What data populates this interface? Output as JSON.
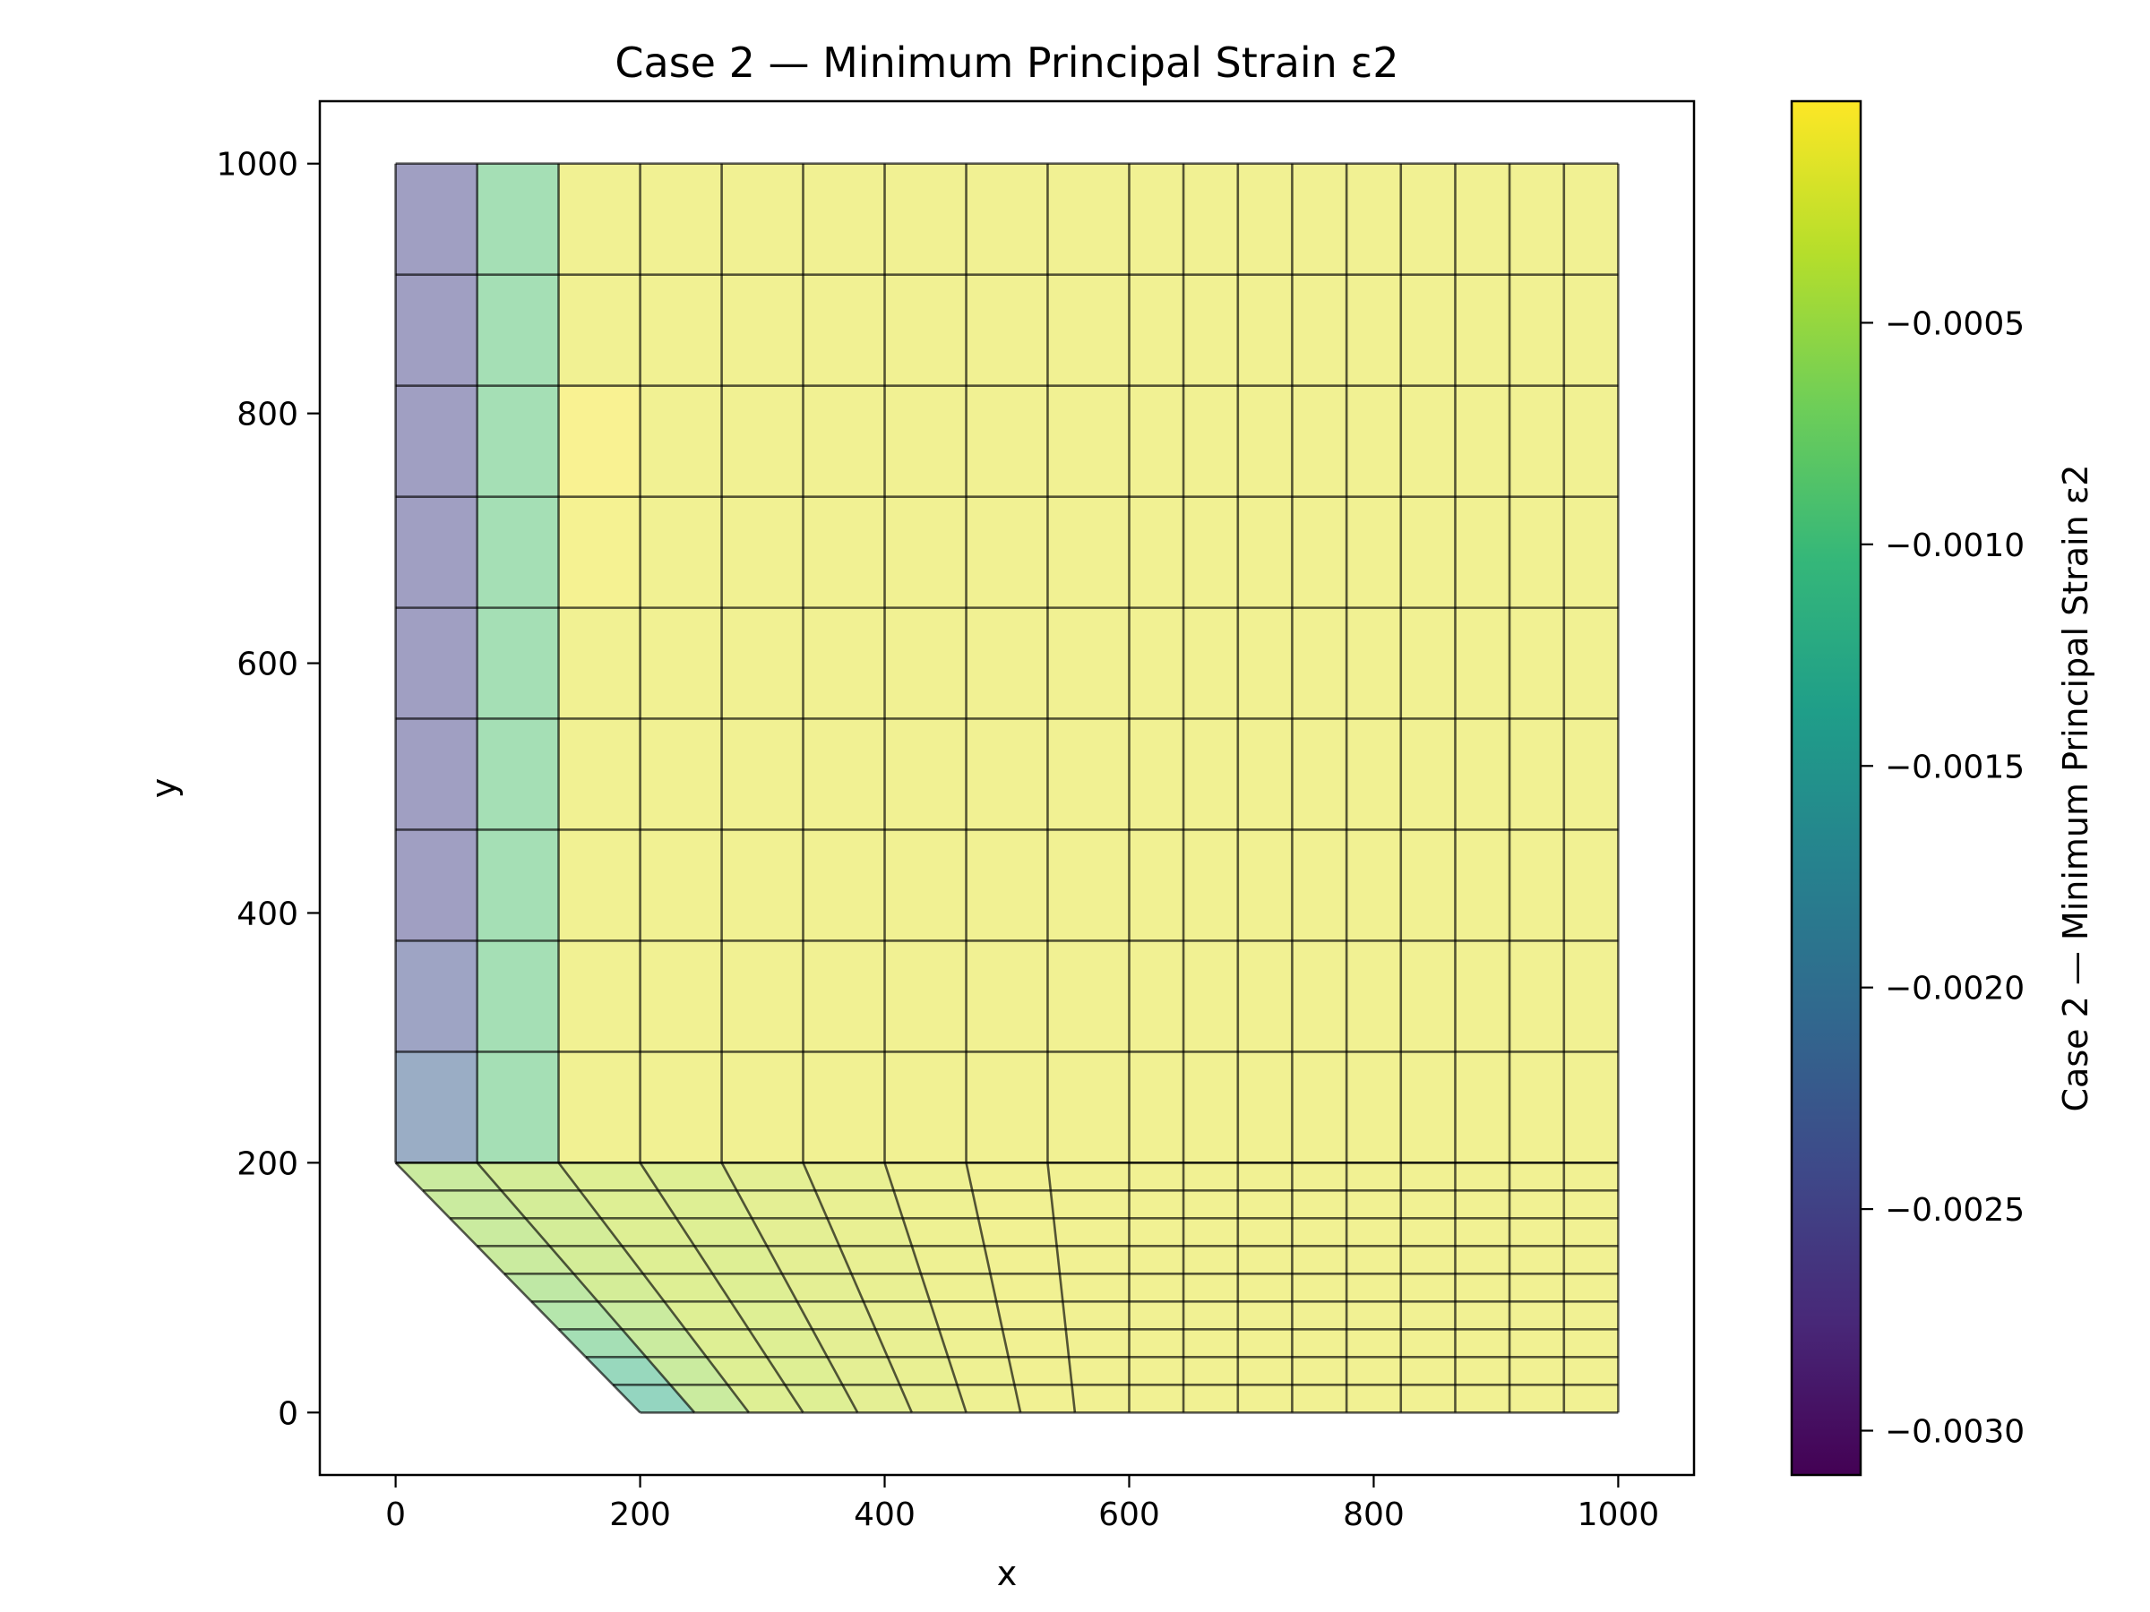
{
  "chart_data": {
    "type": "heatmap",
    "title": "Case  2 — Minimum Principal Strain ε2",
    "xlabel": "x",
    "ylabel": "y",
    "xlim": [
      -62,
      1062
    ],
    "ylim": [
      -50,
      1050
    ],
    "xticks": [
      0,
      200,
      400,
      600,
      800,
      1000
    ],
    "yticks": [
      0,
      200,
      400,
      600,
      800,
      1000
    ],
    "xtick_labels": [
      "0",
      "200",
      "400",
      "600",
      "800",
      "1000"
    ],
    "ytick_labels": [
      "0",
      "200",
      "400",
      "600",
      "800",
      "1000"
    ],
    "grid": false,
    "colormap": "viridis",
    "colorbar": {
      "label": "Case  2 — Minimum Principal Strain ε2",
      "range": [
        -0.0031,
        0.0
      ],
      "ticks": [
        -0.0005,
        -0.001,
        -0.0015,
        -0.002,
        -0.0025,
        -0.003
      ],
      "tick_labels": [
        "−0.0005",
        "−0.0010",
        "−0.0015",
        "−0.0020",
        "−0.0025",
        "−0.0030"
      ],
      "colors": [
        "#440154",
        "#482878",
        "#3e4989",
        "#31688e",
        "#26828e",
        "#1f9e89",
        "#35b779",
        "#6ece58",
        "#b5de2b",
        "#fde725"
      ]
    },
    "mesh": {
      "upper_x_nodes": [
        0,
        66.7,
        133.3,
        200,
        266.7,
        333.3,
        400,
        466.7,
        533.3,
        600,
        644.4,
        688.9,
        733.3,
        777.8,
        822.2,
        866.7,
        911.1,
        955.6,
        1000
      ],
      "upper_y_nodes": [
        200,
        288.9,
        377.8,
        466.7,
        555.6,
        644.4,
        733.3,
        822.2,
        911.1,
        1000
      ],
      "upper_values": [
        [
          -0.0022,
          -0.0009,
          -0.00012,
          -0.00012,
          -0.00012,
          -0.00012,
          -0.00012,
          -0.00012,
          -0.00012,
          -0.00012,
          -0.00012,
          -0.00012,
          -0.00012,
          -0.00012,
          -0.00012,
          -0.00012,
          -0.00012,
          -0.00012
        ],
        [
          -0.0024,
          -0.0009,
          -0.00012,
          -0.00012,
          -0.00012,
          -0.00012,
          -0.00012,
          -0.00012,
          -0.00012,
          -0.00012,
          -0.00012,
          -0.00012,
          -0.00012,
          -0.00012,
          -0.00012,
          -0.00012,
          -0.00012,
          -0.00012
        ],
        [
          -0.0025,
          -0.0009,
          -0.00012,
          -0.00012,
          -0.00012,
          -0.00012,
          -0.00012,
          -0.00012,
          -0.00012,
          -0.00012,
          -0.00012,
          -0.00012,
          -0.00012,
          -0.00012,
          -0.00012,
          -0.00012,
          -0.00012,
          -0.00012
        ],
        [
          -0.0025,
          -0.0009,
          -0.00012,
          -0.00012,
          -0.00012,
          -0.00012,
          -0.00012,
          -0.00012,
          -0.00012,
          -0.00012,
          -0.00012,
          -0.00012,
          -0.00012,
          -0.00012,
          -0.00012,
          -0.00012,
          -0.00012,
          -0.00012
        ],
        [
          -0.0025,
          -0.0009,
          -0.00012,
          -0.00012,
          -0.00012,
          -0.00012,
          -0.00012,
          -0.00012,
          -0.00012,
          -0.00012,
          -0.00012,
          -0.00012,
          -0.00012,
          -0.00012,
          -0.00012,
          -0.00012,
          -0.00012,
          -0.00012
        ],
        [
          -0.0025,
          -0.0009,
          -8e-05,
          -0.00012,
          -0.00012,
          -0.00012,
          -0.00012,
          -0.00012,
          -0.00012,
          -0.00012,
          -0.00012,
          -0.00012,
          -0.00012,
          -0.00012,
          -0.00012,
          -0.00012,
          -0.00012,
          -0.00012
        ],
        [
          -0.0025,
          -0.0009,
          -5e-05,
          -0.00012,
          -0.00012,
          -0.00012,
          -0.00012,
          -0.00012,
          -0.00012,
          -0.00012,
          -0.00012,
          -0.00012,
          -0.00012,
          -0.00012,
          -0.00012,
          -0.00012,
          -0.00012,
          -0.00012
        ],
        [
          -0.0025,
          -0.0009,
          -0.00012,
          -0.00012,
          -0.00012,
          -0.00012,
          -0.00012,
          -0.00012,
          -0.00012,
          -0.00012,
          -0.00012,
          -0.00012,
          -0.00012,
          -0.00012,
          -0.00012,
          -0.00012,
          -0.00012,
          -0.00012
        ],
        [
          -0.0025,
          -0.0009,
          -0.00012,
          -0.00012,
          -0.00012,
          -0.00012,
          -0.00012,
          -0.00012,
          -0.00012,
          -0.00012,
          -0.00012,
          -0.00012,
          -0.00012,
          -0.00012,
          -0.00012,
          -0.00012,
          -0.00012,
          -0.00012
        ]
      ],
      "lower_rows": 9,
      "lower_top_y": 200,
      "lower_bottom_y": 0,
      "lower_top_x_nodes": [
        0,
        66.7,
        133.3,
        200,
        266.7,
        333.3,
        400,
        466.7,
        533.3,
        600,
        644.4,
        688.9,
        733.3,
        777.8,
        822.2,
        866.7,
        911.1,
        955.6,
        1000
      ],
      "lower_bottom_x_nodes": [
        200,
        244.4,
        288.9,
        333.3,
        377.8,
        422.2,
        466.7,
        511.1,
        555.6,
        600,
        644.4,
        688.9,
        733.3,
        777.8,
        822.2,
        866.7,
        911.1,
        955.6,
        1000
      ],
      "lower_values": [
        [
          -0.0012,
          -0.0005,
          -0.0003,
          -0.0003,
          -0.00025,
          -0.0002,
          -0.00015,
          -0.00012,
          -0.00012,
          -0.00012,
          -0.00012,
          -0.00012,
          -0.00012,
          -0.00012,
          -0.00012,
          -0.00012,
          -0.00012,
          -0.00012
        ],
        [
          -0.0011,
          -0.0005,
          -0.0003,
          -0.0003,
          -0.00025,
          -0.0002,
          -0.00015,
          -0.00012,
          -0.00012,
          -0.00012,
          -0.00012,
          -0.00012,
          -0.00012,
          -0.00012,
          -0.00012,
          -0.00012,
          -0.00012,
          -0.00012
        ],
        [
          -0.0009,
          -0.0005,
          -0.0003,
          -0.0003,
          -0.00025,
          -0.0002,
          -0.00015,
          -0.00012,
          -0.00012,
          -0.00012,
          -0.00012,
          -0.00012,
          -0.00012,
          -0.00012,
          -0.00012,
          -0.00012,
          -0.00012,
          -0.00012
        ],
        [
          -0.0007,
          -0.0005,
          -0.0003,
          -0.0003,
          -0.00025,
          -0.0002,
          -0.00015,
          -0.00012,
          -0.00012,
          -0.00012,
          -0.00012,
          -0.00012,
          -0.00012,
          -0.00012,
          -0.00012,
          -0.00012,
          -0.00012,
          -0.00012
        ],
        [
          -0.0006,
          -0.0004,
          -0.0003,
          -0.0003,
          -0.00025,
          -0.0002,
          -0.00015,
          -0.00012,
          -0.00012,
          -0.00012,
          -0.00012,
          -0.00012,
          -0.00012,
          -0.00012,
          -0.00012,
          -0.00012,
          -0.00012,
          -0.00012
        ],
        [
          -0.0005,
          -0.0004,
          -0.0003,
          -0.0003,
          -0.00025,
          -0.0002,
          -0.00015,
          -0.00012,
          -0.00012,
          -0.00012,
          -0.00012,
          -0.00012,
          -0.00012,
          -0.00012,
          -0.00012,
          -0.00012,
          -0.00012,
          -0.00012
        ],
        [
          -0.0005,
          -0.0004,
          -0.0003,
          -0.0003,
          -0.00025,
          -0.0002,
          -0.00015,
          -0.00012,
          -0.00012,
          -0.00012,
          -0.00012,
          -0.00012,
          -0.00012,
          -0.00012,
          -0.00012,
          -0.00012,
          -0.00012,
          -0.00012
        ],
        [
          -0.0005,
          -0.0004,
          -0.0003,
          -0.0003,
          -0.00025,
          -0.0002,
          -0.00015,
          -0.00012,
          -0.00012,
          -0.00012,
          -0.00012,
          -0.00012,
          -0.00012,
          -0.00012,
          -0.00012,
          -0.00012,
          -0.00012,
          -0.00012
        ],
        [
          -0.0005,
          -0.0004,
          -0.0003,
          -0.0003,
          -0.00025,
          -0.0002,
          -0.00015,
          -0.00012,
          -0.00012,
          -0.00012,
          -0.00012,
          -0.00012,
          -0.00012,
          -0.00012,
          -0.00012,
          -0.00012,
          -0.00012,
          -0.00012
        ]
      ]
    }
  }
}
